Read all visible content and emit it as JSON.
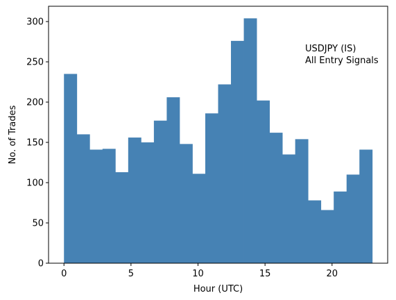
{
  "chart_data": {
    "type": "bar",
    "subtype": "histogram",
    "bin_edges": [
      0,
      0.9583,
      1.9167,
      2.875,
      3.8333,
      4.7917,
      5.75,
      6.7083,
      7.6667,
      8.625,
      9.5833,
      10.5417,
      11.5,
      12.4583,
      13.4167,
      14.375,
      15.3333,
      16.2917,
      17.25,
      18.2083,
      19.1667,
      20.125,
      21.0833,
      22.0417,
      23
    ],
    "values": [
      235,
      160,
      141,
      142,
      113,
      156,
      150,
      177,
      206,
      148,
      111,
      186,
      222,
      276,
      304,
      202,
      162,
      135,
      154,
      78,
      66,
      89,
      110,
      141
    ],
    "xlabel": "Hour (UTC)",
    "ylabel": "No. of Trades",
    "xlim": [
      -1.15,
      24.15
    ],
    "ylim": [
      0,
      319
    ],
    "xticks": [
      0,
      5,
      10,
      15,
      20
    ],
    "yticks": [
      0,
      50,
      100,
      150,
      200,
      250,
      300
    ],
    "bar_color": "#4682b4",
    "grid": false,
    "annotation": [
      "USDJPY (IS)",
      "All Entry Signals"
    ]
  }
}
